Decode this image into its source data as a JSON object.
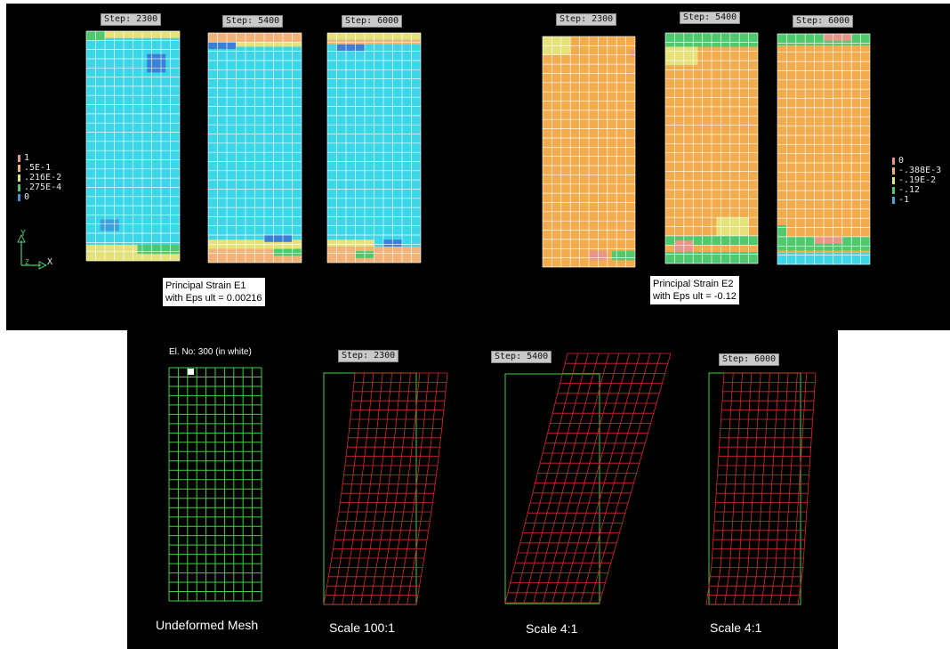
{
  "top_panel": {
    "e1": {
      "steps": [
        "Step: 2300",
        "Step: 5400",
        "Step: 6000"
      ],
      "legend": [
        "1",
        ".5E-1",
        ".216E-2",
        ".275E-4",
        "0"
      ],
      "legend_colors": [
        "#e8968a",
        "#f3b277",
        "#e6e27a",
        "#4ec96e",
        "#4a8fd6"
      ],
      "note_line1": "Principal Strain E1",
      "note_line2": "with Eps ult = 0.00216",
      "field_color": "#3bd6e8"
    },
    "e2": {
      "steps": [
        "Step: 2300",
        "Step: 5400",
        "Step: 6000"
      ],
      "legend": [
        "0",
        "-.388E-3",
        "-.19E-2",
        "-.12",
        "-1"
      ],
      "legend_colors": [
        "#e8968a",
        "#f3b277",
        "#e6e27a",
        "#4ec96e",
        "#4aa8e0"
      ],
      "note_line1": "Principal Strain E2",
      "note_line2": "with Eps ult = -0.12",
      "field_color": "#f2ac4e"
    },
    "axes": {
      "y": "Y",
      "x": "X",
      "z": "Z"
    }
  },
  "bottom_panel": {
    "element_label": "El. No: 300 (in white)",
    "step_tags": [
      "Step: 2300",
      "Step: 5400",
      "Step: 6000"
    ],
    "captions": [
      "Undeformed Mesh",
      "Scale 100:1",
      "Scale 4:1",
      "Scale 4:1"
    ],
    "colors": {
      "undeformed": "#3fd23f",
      "deformed": "#e0242c"
    }
  }
}
